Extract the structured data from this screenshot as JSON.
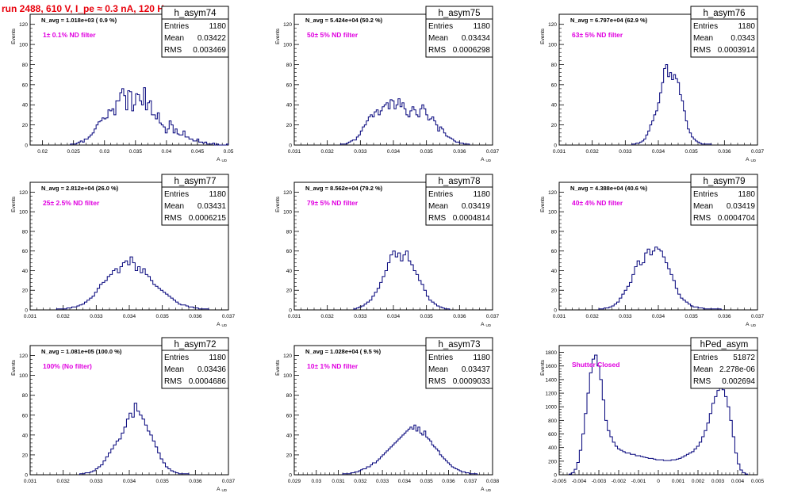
{
  "header": {
    "title": "run 2488,   610 V, I_pe ≈ 0.3 nA, 120 Hz"
  },
  "colors": {
    "title": "#e8000b",
    "histogram": "#00007a",
    "annotation": "#e000e0",
    "frame": "#000000"
  },
  "chart_data": [
    {
      "type": "histogram",
      "name": "h_asym74",
      "navg_text": "N_avg = 1.018e+03 ( 0.9 %)",
      "filter_label": "1± 0.1% ND filter",
      "stats": [
        [
          "Entries",
          "1180"
        ],
        [
          "Mean",
          "0.03422"
        ],
        [
          "RMS",
          "0.003469"
        ]
      ],
      "xlabel": "A_UD",
      "ylabel": "Events",
      "xlim": [
        0.018,
        0.05
      ],
      "ylim": [
        0,
        130
      ],
      "x_ticks": [
        0.02,
        0.025,
        0.03,
        0.035,
        0.04,
        0.045,
        0.05
      ],
      "x_tick_labels": [
        "0.02",
        "0.025",
        "0.03",
        "0.035",
        "0.04",
        "0.045",
        "0.05"
      ],
      "y_ticks": [
        0,
        20,
        40,
        60,
        80,
        100,
        120
      ],
      "y_tick_labels": [
        "0",
        "20",
        "40",
        "60",
        "80",
        "100",
        "120"
      ],
      "bin_edges": [
        0.0245,
        0.05
      ],
      "counts": [
        1,
        1,
        1,
        2,
        3,
        4,
        3,
        6,
        6,
        8,
        10,
        12,
        16,
        20,
        23,
        24,
        27,
        26,
        27,
        35,
        34,
        36,
        30,
        44,
        44,
        52,
        56,
        49,
        35,
        54,
        53,
        34,
        40,
        51,
        50,
        44,
        40,
        57,
        35,
        42,
        44,
        30,
        30,
        26,
        32,
        22,
        20,
        18,
        12,
        16,
        24,
        20,
        12,
        16,
        11,
        10,
        10,
        14,
        8,
        8,
        6,
        6,
        4,
        4,
        6,
        3,
        3,
        2,
        3,
        1,
        1,
        1,
        2,
        0,
        1,
        0,
        0,
        0,
        0,
        1
      ]
    },
    {
      "type": "histogram",
      "name": "h_asym75",
      "navg_text": "N_avg = 5.424e+04 (50.2 %)",
      "filter_label": "50± 5% ND filter",
      "stats": [
        [
          "Entries",
          "1180"
        ],
        [
          "Mean",
          "0.03434"
        ],
        [
          "RMS",
          "0.0006298"
        ]
      ],
      "xlabel": "A_UD",
      "ylabel": "Events",
      "xlim": [
        0.031,
        0.037
      ],
      "ylim": [
        0,
        130
      ],
      "x_ticks": [
        0.031,
        0.032,
        0.033,
        0.034,
        0.035,
        0.036,
        0.037
      ],
      "x_tick_labels": [
        "0.031",
        "0.032",
        "0.033",
        "0.034",
        "0.035",
        "0.036",
        "0.037"
      ],
      "y_ticks": [
        0,
        20,
        40,
        60,
        80,
        100,
        120
      ],
      "y_tick_labels": [
        "0",
        "20",
        "40",
        "60",
        "80",
        "100",
        "120"
      ],
      "bin_edges": [
        0.0324,
        0.0363
      ],
      "counts": [
        1,
        1,
        1,
        2,
        3,
        4,
        5,
        5,
        8,
        10,
        14,
        18,
        20,
        24,
        28,
        30,
        28,
        33,
        35,
        30,
        34,
        38,
        40,
        42,
        36,
        45,
        44,
        36,
        40,
        46,
        38,
        42,
        36,
        30,
        28,
        34,
        38,
        35,
        30,
        28,
        36,
        40,
        36,
        30,
        25,
        26,
        28,
        24,
        20,
        14,
        18,
        16,
        12,
        9,
        8,
        7,
        6,
        4,
        3,
        3,
        2,
        2,
        1,
        1,
        1
      ]
    },
    {
      "type": "histogram",
      "name": "h_asym76",
      "navg_text": "N_avg = 6.797e+04 (62.9 %)",
      "filter_label": "63± 5% ND filter",
      "stats": [
        [
          "Entries",
          "1180"
        ],
        [
          "Mean",
          "0.0343"
        ],
        [
          "RMS",
          "0.0003914"
        ]
      ],
      "xlabel": "A_UD",
      "ylabel": "Events",
      "xlim": [
        0.031,
        0.037
      ],
      "ylim": [
        0,
        130
      ],
      "x_ticks": [
        0.031,
        0.032,
        0.033,
        0.034,
        0.035,
        0.036,
        0.037
      ],
      "x_tick_labels": [
        "0.031",
        "0.032",
        "0.033",
        "0.034",
        "0.035",
        "0.036",
        "0.037"
      ],
      "y_ticks": [
        0,
        20,
        40,
        60,
        80,
        100,
        120
      ],
      "y_tick_labels": [
        "0",
        "20",
        "40",
        "60",
        "80",
        "100",
        "120"
      ],
      "bin_edges": [
        0.0332,
        0.0356
      ],
      "counts": [
        1,
        1,
        2,
        2,
        3,
        4,
        6,
        10,
        14,
        20,
        24,
        30,
        34,
        42,
        52,
        62,
        76,
        80,
        68,
        72,
        65,
        70,
        66,
        62,
        50,
        44,
        34,
        24,
        16,
        12,
        8,
        6,
        4,
        3,
        2,
        1,
        1,
        1,
        1,
        1
      ]
    },
    {
      "type": "histogram",
      "name": "h_asym77",
      "navg_text": "N_avg = 2.812e+04 (26.0 %)",
      "filter_label": "25± 2.5% ND filter",
      "stats": [
        [
          "Entries",
          "1180"
        ],
        [
          "Mean",
          "0.03431"
        ],
        [
          "RMS",
          "0.0006215"
        ]
      ],
      "xlabel": "A_UD",
      "ylabel": "Events",
      "xlim": [
        0.031,
        0.037
      ],
      "ylim": [
        0,
        130
      ],
      "x_ticks": [
        0.031,
        0.032,
        0.033,
        0.034,
        0.035,
        0.036,
        0.037
      ],
      "x_tick_labels": [
        "0.031",
        "0.032",
        "0.033",
        "0.034",
        "0.035",
        "0.036",
        "0.037"
      ],
      "y_ticks": [
        0,
        20,
        40,
        60,
        80,
        100,
        120
      ],
      "y_tick_labels": [
        "0",
        "20",
        "40",
        "60",
        "80",
        "100",
        "120"
      ],
      "bin_edges": [
        0.0318,
        0.0364
      ],
      "counts": [
        1,
        1,
        1,
        1,
        2,
        2,
        3,
        3,
        4,
        5,
        6,
        8,
        10,
        12,
        14,
        18,
        22,
        26,
        28,
        30,
        34,
        36,
        40,
        42,
        38,
        44,
        48,
        50,
        46,
        54,
        48,
        40,
        44,
        38,
        42,
        36,
        34,
        30,
        26,
        24,
        22,
        20,
        18,
        16,
        14,
        12,
        10,
        8,
        6,
        5,
        5,
        4,
        3,
        3,
        2,
        2,
        1,
        1,
        1,
        1
      ]
    },
    {
      "type": "histogram",
      "name": "h_asym78",
      "navg_text": "N_avg = 8.562e+04 (79.2 %)",
      "filter_label": "79± 5% ND filter",
      "stats": [
        [
          "Entries",
          "1180"
        ],
        [
          "Mean",
          "0.03419"
        ],
        [
          "RMS",
          "0.0004814"
        ]
      ],
      "xlabel": "A_UD",
      "ylabel": "Events",
      "xlim": [
        0.031,
        0.037
      ],
      "ylim": [
        0,
        130
      ],
      "x_ticks": [
        0.031,
        0.032,
        0.033,
        0.034,
        0.035,
        0.036,
        0.037
      ],
      "x_tick_labels": [
        "0.031",
        "0.032",
        "0.033",
        "0.034",
        "0.035",
        "0.036",
        "0.037"
      ],
      "y_ticks": [
        0,
        20,
        40,
        60,
        80,
        100,
        120
      ],
      "y_tick_labels": [
        "0",
        "20",
        "40",
        "60",
        "80",
        "100",
        "120"
      ],
      "bin_edges": [
        0.0328,
        0.0357
      ],
      "counts": [
        1,
        2,
        3,
        4,
        6,
        8,
        10,
        14,
        18,
        22,
        28,
        34,
        40,
        48,
        56,
        60,
        54,
        58,
        50,
        56,
        60,
        50,
        46,
        40,
        36,
        30,
        26,
        20,
        14,
        10,
        8,
        6,
        4,
        3,
        2,
        1,
        1
      ]
    },
    {
      "type": "histogram",
      "name": "h_asym79",
      "navg_text": "N_avg = 4.388e+04 (40.6 %)",
      "filter_label": "40± 4% ND filter",
      "stats": [
        [
          "Entries",
          "1180"
        ],
        [
          "Mean",
          "0.03419"
        ],
        [
          "RMS",
          "0.0004704"
        ]
      ],
      "xlabel": "A_UD",
      "ylabel": "Events",
      "xlim": [
        0.031,
        0.037
      ],
      "ylim": [
        0,
        130
      ],
      "x_ticks": [
        0.031,
        0.032,
        0.033,
        0.034,
        0.035,
        0.036,
        0.037
      ],
      "x_tick_labels": [
        "0.031",
        "0.032",
        "0.033",
        "0.034",
        "0.035",
        "0.036",
        "0.037"
      ],
      "y_ticks": [
        0,
        20,
        40,
        60,
        80,
        100,
        120
      ],
      "y_tick_labels": [
        "0",
        "20",
        "40",
        "60",
        "80",
        "100",
        "120"
      ],
      "bin_edges": [
        0.0322,
        0.0359
      ],
      "counts": [
        1,
        1,
        2,
        2,
        3,
        4,
        6,
        8,
        12,
        16,
        20,
        24,
        28,
        36,
        44,
        50,
        46,
        48,
        58,
        62,
        56,
        60,
        64,
        62,
        60,
        54,
        48,
        42,
        36,
        30,
        22,
        16,
        12,
        10,
        8,
        6,
        4,
        3,
        3,
        2,
        2,
        1,
        1,
        1,
        1,
        1,
        1,
        1
      ]
    },
    {
      "type": "histogram",
      "name": "h_asym72",
      "navg_text": "N_avg = 1.081e+05 (100.0 %)",
      "filter_label": "100% (No filter)",
      "stats": [
        [
          "Entries",
          "1180"
        ],
        [
          "Mean",
          "0.03436"
        ],
        [
          "RMS",
          "0.0004686"
        ]
      ],
      "xlabel": "A_UD",
      "ylabel": "Events",
      "xlim": [
        0.031,
        0.037
      ],
      "ylim": [
        0,
        130
      ],
      "x_ticks": [
        0.031,
        0.032,
        0.033,
        0.034,
        0.035,
        0.036,
        0.037
      ],
      "x_tick_labels": [
        "0.031",
        "0.032",
        "0.033",
        "0.034",
        "0.035",
        "0.036",
        "0.037"
      ],
      "y_ticks": [
        0,
        20,
        40,
        60,
        80,
        100,
        120
      ],
      "y_tick_labels": [
        "0",
        "20",
        "40",
        "60",
        "80",
        "100",
        "120"
      ],
      "bin_edges": [
        0.0325,
        0.0358
      ],
      "counts": [
        1,
        1,
        2,
        2,
        3,
        4,
        6,
        8,
        10,
        14,
        18,
        22,
        26,
        30,
        34,
        36,
        42,
        48,
        56,
        62,
        58,
        72,
        64,
        60,
        56,
        50,
        44,
        40,
        34,
        28,
        22,
        16,
        12,
        8,
        6,
        4,
        3,
        2,
        1,
        1,
        1,
        1
      ]
    },
    {
      "type": "histogram",
      "name": "h_asym73",
      "navg_text": "N_avg = 1.028e+04 ( 9.5 %)",
      "filter_label": "10± 1% ND filter",
      "stats": [
        [
          "Entries",
          "1180"
        ],
        [
          "Mean",
          "0.03437"
        ],
        [
          "RMS",
          "0.0009033"
        ]
      ],
      "xlabel": "A_UD",
      "ylabel": "Events",
      "xlim": [
        0.029,
        0.038
      ],
      "ylim": [
        0,
        130
      ],
      "x_ticks": [
        0.029,
        0.03,
        0.031,
        0.032,
        0.033,
        0.034,
        0.035,
        0.036,
        0.037,
        0.038
      ],
      "x_tick_labels": [
        "0.029",
        "0.03",
        "0.031",
        "0.032",
        "0.033",
        "0.034",
        "0.035",
        "0.036",
        "0.037",
        "0.038"
      ],
      "y_ticks": [
        0,
        20,
        40,
        60,
        80,
        100,
        120
      ],
      "y_tick_labels": [
        "0",
        "20",
        "40",
        "60",
        "80",
        "100",
        "120"
      ],
      "bin_edges": [
        0.0312,
        0.0373
      ],
      "counts": [
        1,
        1,
        1,
        1,
        2,
        2,
        3,
        3,
        4,
        5,
        6,
        6,
        8,
        8,
        10,
        12,
        12,
        14,
        16,
        18,
        20,
        22,
        24,
        26,
        28,
        30,
        32,
        34,
        36,
        38,
        40,
        42,
        44,
        46,
        48,
        46,
        50,
        44,
        48,
        42,
        40,
        44,
        38,
        36,
        34,
        30,
        28,
        26,
        24,
        20,
        18,
        16,
        14,
        12,
        10,
        8,
        7,
        6,
        5,
        4,
        3,
        3,
        2,
        2,
        1,
        1,
        1,
        1
      ]
    },
    {
      "type": "histogram",
      "name": "hPed_asym",
      "navg_text": "",
      "filter_label": "Shutter Closed",
      "stats": [
        [
          "Entries",
          "51872"
        ],
        [
          "Mean",
          "2.278e-06"
        ],
        [
          "RMS",
          "0.002694"
        ]
      ],
      "xlabel": "",
      "ylabel": "Events",
      "xlim": [
        -0.005,
        0.005
      ],
      "ylim": [
        0,
        1900
      ],
      "x_ticks": [
        -0.005,
        -0.004,
        -0.003,
        -0.002,
        -0.001,
        0,
        0.001,
        0.002,
        0.003,
        0.004,
        0.005
      ],
      "x_tick_labels": [
        "-0.005",
        "-0.004",
        "-0.003",
        "-0.002",
        "-0.001",
        "0",
        "0.001",
        "0.002",
        "0.003",
        "0.004",
        "0.005"
      ],
      "y_ticks": [
        0,
        200,
        400,
        600,
        800,
        1000,
        1200,
        1400,
        1600,
        1800
      ],
      "y_tick_labels": [
        "0",
        "200",
        "400",
        "600",
        "800",
        "1000",
        "1200",
        "1400",
        "1600",
        "1800"
      ],
      "bin_edges": [
        -0.0045,
        0.0045
      ],
      "counts": [
        10,
        30,
        80,
        180,
        360,
        600,
        900,
        1200,
        1500,
        1700,
        1760,
        1600,
        1400,
        1100,
        800,
        650,
        560,
        480,
        420,
        380,
        360,
        340,
        320,
        320,
        300,
        300,
        280,
        280,
        270,
        260,
        250,
        240,
        240,
        230,
        220,
        220,
        220,
        210,
        210,
        210,
        220,
        220,
        230,
        240,
        260,
        280,
        300,
        320,
        340,
        380,
        420,
        480,
        560,
        650,
        760,
        900,
        1050,
        1150,
        1240,
        1300,
        1250,
        1150,
        1000,
        800,
        560,
        320,
        160,
        70,
        30,
        10
      ]
    }
  ]
}
